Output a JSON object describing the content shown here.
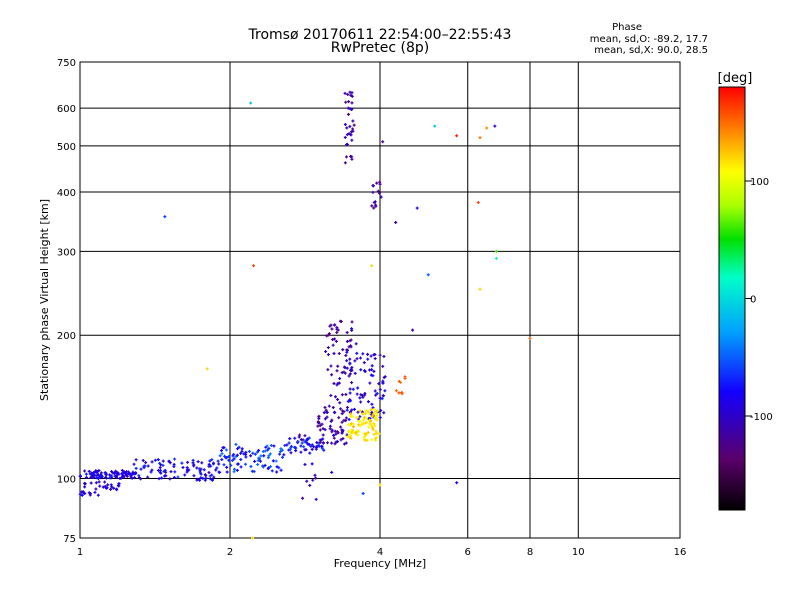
{
  "title_line1": "Tromsø 20170611 22:54:00–22:55:43",
  "title_line2": "RwPretec (8p)",
  "phase_box": {
    "title": "Phase",
    "line_o": "mean, sd,O: -89.2, 17.7",
    "line_x": "mean, sd,X:  90.0, 28.5"
  },
  "colorbar": {
    "label": "[deg]",
    "ticks": [
      "100",
      "0",
      "-100"
    ],
    "range": [
      -180,
      180
    ]
  },
  "chart_data": {
    "type": "scatter",
    "xlabel": "Frequency [MHz]",
    "ylabel": "Stationary phase Virtual Height [km]",
    "xscale": "log",
    "yscale": "log",
    "xlim": [
      1,
      16
    ],
    "ylim": [
      75,
      750
    ],
    "x_ticks": [
      1,
      2,
      4,
      6,
      8,
      10,
      16
    ],
    "y_ticks": [
      75,
      100,
      200,
      300,
      400,
      500,
      600,
      750
    ],
    "vlines": [
      2,
      4,
      6,
      8,
      10
    ],
    "hlines": [
      100,
      200,
      300,
      400,
      500,
      600
    ],
    "clusters": [
      {
        "x": [
          1.0,
          1.28
        ],
        "y": [
          100,
          104
        ],
        "n": 90,
        "phase": [
          -110,
          -70
        ]
      },
      {
        "x": [
          1.0,
          1.2
        ],
        "y": [
          92,
          99
        ],
        "n": 35,
        "phase": [
          -110,
          -80
        ]
      },
      {
        "x": [
          1.28,
          1.9
        ],
        "y": [
          99,
          110
        ],
        "n": 100,
        "phase": [
          -110,
          -60
        ]
      },
      {
        "x": [
          1.9,
          2.6
        ],
        "y": [
          103,
          118
        ],
        "n": 90,
        "phase": [
          -90,
          -40
        ]
      },
      {
        "x": [
          2.6,
          3.1
        ],
        "y": [
          113,
          122
        ],
        "n": 50,
        "phase": [
          -100,
          -50
        ]
      },
      {
        "x": [
          3.0,
          3.45
        ],
        "y": [
          118,
          140
        ],
        "n": 60,
        "phase": [
          -130,
          -90
        ]
      },
      {
        "x": [
          3.1,
          3.6
        ],
        "y": [
          140,
          215
        ],
        "n": 70,
        "phase": [
          -130,
          -100
        ]
      },
      {
        "x": [
          3.4,
          4.1
        ],
        "y": [
          133,
          185
        ],
        "n": 90,
        "phase": [
          -110,
          -70
        ]
      },
      {
        "x": [
          3.45,
          4.0
        ],
        "y": [
          120,
          140
        ],
        "n": 90,
        "phase": [
          100,
          130
        ]
      },
      {
        "x": [
          3.4,
          3.55
        ],
        "y": [
          460,
          650
        ],
        "n": 35,
        "phase": [
          -130,
          -100
        ]
      },
      {
        "x": [
          3.85,
          4.05
        ],
        "y": [
          370,
          420
        ],
        "n": 15,
        "phase": [
          -130,
          -100
        ]
      },
      {
        "x": [
          4.3,
          4.5
        ],
        "y": [
          150,
          165
        ],
        "n": 8,
        "phase": [
          140,
          160
        ]
      },
      {
        "x": [
          2.7,
          3.0
        ],
        "y": [
          90,
          125
        ],
        "n": 14,
        "phase": [
          -130,
          -80
        ]
      }
    ],
    "points": [
      {
        "x": 1.48,
        "y": 355,
        "phase": -60
      },
      {
        "x": 2.23,
        "y": 280,
        "phase": 160
      },
      {
        "x": 2.2,
        "y": 615,
        "phase": -10
      },
      {
        "x": 1.8,
        "y": 170,
        "phase": 120
      },
      {
        "x": 3.85,
        "y": 280,
        "phase": 120
      },
      {
        "x": 4.75,
        "y": 370,
        "phase": -80
      },
      {
        "x": 5.0,
        "y": 268,
        "phase": -50
      },
      {
        "x": 5.15,
        "y": 550,
        "phase": -10
      },
      {
        "x": 5.7,
        "y": 525,
        "phase": 170
      },
      {
        "x": 6.3,
        "y": 380,
        "phase": 160
      },
      {
        "x": 6.35,
        "y": 520,
        "phase": 150
      },
      {
        "x": 6.55,
        "y": 545,
        "phase": 140
      },
      {
        "x": 6.8,
        "y": 550,
        "phase": -100
      },
      {
        "x": 6.85,
        "y": 300,
        "phase": 60
      },
      {
        "x": 6.85,
        "y": 290,
        "phase": 20
      },
      {
        "x": 6.35,
        "y": 250,
        "phase": 120
      },
      {
        "x": 8.0,
        "y": 197,
        "phase": 150
      },
      {
        "x": 5.7,
        "y": 98,
        "phase": -80
      },
      {
        "x": 4.65,
        "y": 205,
        "phase": -110
      },
      {
        "x": 4.0,
        "y": 97,
        "phase": 120
      },
      {
        "x": 3.7,
        "y": 93,
        "phase": -60
      },
      {
        "x": 3.2,
        "y": 103,
        "phase": -80
      },
      {
        "x": 4.05,
        "y": 510,
        "phase": -120
      },
      {
        "x": 4.3,
        "y": 345,
        "phase": -110
      },
      {
        "x": 2.22,
        "y": 75,
        "phase": 120
      }
    ]
  }
}
